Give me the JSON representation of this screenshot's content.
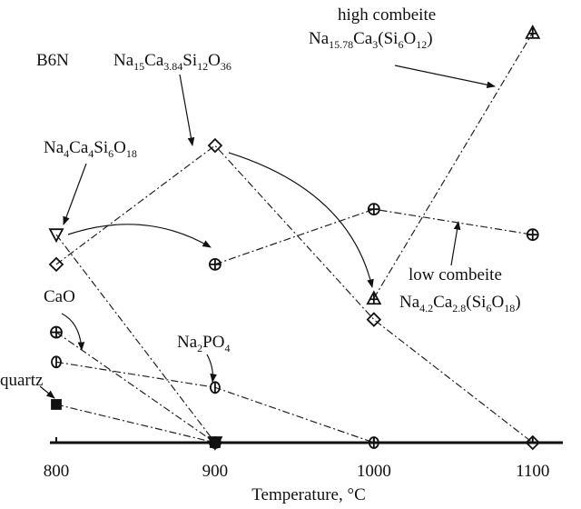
{
  "chart_data": {
    "type": "line",
    "x_label": "Temperature, °C",
    "xlim": [
      796,
      1119
    ],
    "xticks": [
      800,
      900,
      1000,
      1100
    ],
    "ylim": [
      0,
      100
    ],
    "series": [
      {
        "marker": "diamond",
        "x": [
          800,
          900,
          1000,
          1100
        ],
        "values": [
          42,
          70,
          29,
          0
        ]
      },
      {
        "marker": "triangle-down",
        "x": [
          800,
          900
        ],
        "values": [
          49,
          0
        ]
      },
      {
        "marker": "circle-plus",
        "x": [
          900,
          1000,
          1100
        ],
        "values": [
          42,
          55,
          49
        ]
      },
      {
        "marker": "triangle-up",
        "x": [
          1000,
          1100
        ],
        "values": [
          34,
          96.6
        ]
      },
      {
        "marker": "circle-plus",
        "x": [
          800,
          900
        ],
        "values": [
          26,
          0
        ]
      },
      {
        "marker": "circle-bar",
        "x": [
          800,
          900,
          1000
        ],
        "values": [
          19,
          13,
          0
        ]
      },
      {
        "marker": "square",
        "x": [
          800,
          900
        ],
        "values": [
          9,
          0
        ]
      }
    ],
    "annotations": [
      {
        "text": [
          "B6N"
        ]
      },
      {
        "text": [
          "Na",
          "15",
          "Ca",
          "3.84",
          "Si",
          "12",
          "O",
          "36"
        ]
      },
      {
        "text": [
          "Na",
          "4",
          "Ca",
          "4",
          "Si",
          "6",
          "O",
          "18"
        ]
      },
      {
        "text": [
          "high combeite"
        ]
      },
      {
        "text": [
          "Na",
          "15.78",
          "Ca",
          "3",
          "(Si",
          "6",
          "O",
          "12",
          ")"
        ]
      },
      {
        "text": [
          "low combeite"
        ]
      },
      {
        "text": [
          "Na",
          "4.2",
          "Ca",
          "2.8",
          "(Si",
          "6",
          "O",
          "18",
          ")"
        ]
      },
      {
        "text": [
          "CaO"
        ]
      },
      {
        "text": [
          "Na",
          "2",
          "PO",
          "4"
        ]
      },
      {
        "text": [
          "quartz"
        ]
      }
    ]
  }
}
